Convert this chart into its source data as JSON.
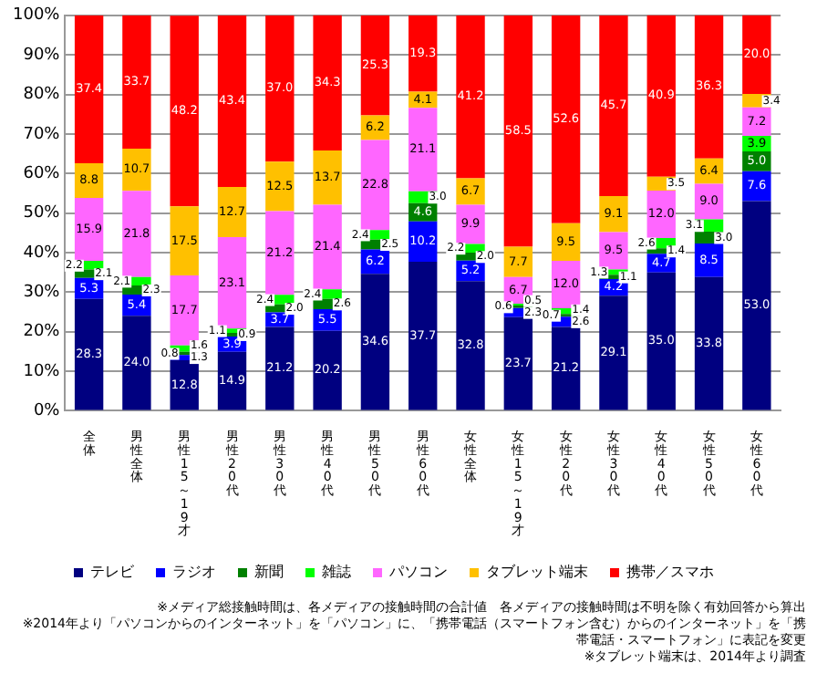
{
  "chart_data": {
    "type": "bar",
    "stacked": true,
    "grid": "y",
    "legend": "bottom",
    "categories": [
      "全体",
      "男性全体",
      "男性15～19才",
      "男性20代",
      "男性30代",
      "男性40代",
      "男性50代",
      "男性60代",
      "女性全体",
      "女性15～19才",
      "女性20代",
      "女性30代",
      "女性40代",
      "女性50代",
      "女性60代"
    ],
    "series": [
      {
        "name": "テレビ",
        "color": "#000080",
        "values": [
          28.3,
          24,
          12.8,
          14.9,
          21.2,
          20.2,
          34.6,
          37.7,
          32.8,
          23.7,
          21.2,
          29.1,
          35,
          33.8,
          53
        ],
        "value_labels": [
          "28.3",
          "24.0",
          "12.8",
          "14.9",
          "21.2",
          "20.2",
          "34.6",
          "37.7",
          "32.8",
          "23.7",
          "21.2",
          "29.1",
          "35.0",
          "33.8",
          "53.0"
        ]
      },
      {
        "name": "ラジオ",
        "color": "#0000ff",
        "values": [
          5.3,
          5.4,
          1.3,
          3.9,
          3.7,
          5.5,
          6.2,
          10.2,
          5.2,
          2.3,
          2.6,
          4.2,
          4.7,
          8.5,
          7.6
        ],
        "value_labels": [
          "5.3",
          "5.4",
          "1.3",
          "3.9",
          "3.7",
          "5.5",
          "6.2",
          "10.2",
          "5.2",
          "2.3",
          "2.6",
          "4.2",
          "4.7",
          "8.5",
          "7.6"
        ]
      },
      {
        "name": "新聞",
        "color": "#008000",
        "values": [
          2.1,
          2.3,
          0.8,
          0.9,
          2,
          2.6,
          2.5,
          4.6,
          2,
          0.6,
          0.7,
          1.1,
          1.4,
          3,
          5
        ],
        "value_labels": [
          "2.1",
          "2.3",
          "0.8",
          "0.9",
          "2.0",
          "2.6",
          "2.5",
          "4.6",
          "2.0",
          "0.6",
          "0.7",
          "1.1",
          "1.4",
          "3.0",
          "5.0"
        ]
      },
      {
        "name": "雑誌",
        "color": "#00ff00",
        "values": [
          2.2,
          2.1,
          1.6,
          1.1,
          2.4,
          2.4,
          2.4,
          3,
          2.2,
          0.5,
          1.4,
          1.3,
          2.6,
          3.1,
          3.9
        ],
        "value_labels": [
          "2.2",
          "2.1",
          "1.6",
          "1.1",
          "2.4",
          "2.4",
          "2.4",
          "3.0",
          "2.2",
          "0.5",
          "1.4",
          "1.3",
          "2.6",
          "3.1",
          "3.9"
        ]
      },
      {
        "name": "パソコン",
        "color": "#ff66ff",
        "values": [
          15.9,
          21.8,
          17.7,
          23.1,
          21.2,
          21.4,
          22.8,
          21.1,
          9.9,
          6.7,
          12,
          9.5,
          12,
          9,
          7.2
        ],
        "value_labels": [
          "15.9",
          "21.8",
          "17.7",
          "23.1",
          "21.2",
          "21.4",
          "22.8",
          "21.1",
          "9.9",
          "6.7",
          "12.0",
          "9.5",
          "12.0",
          "9.0",
          "7.2"
        ]
      },
      {
        "name": "タブレット端末",
        "color": "#ffc000",
        "values": [
          8.8,
          10.7,
          17.5,
          12.7,
          12.5,
          13.7,
          6.2,
          4.1,
          6.7,
          7.7,
          9.5,
          9.1,
          3.5,
          6.4,
          3.4
        ],
        "value_labels": [
          "8.8",
          "10.7",
          "17.5",
          "12.7",
          "12.5",
          "13.7",
          "6.2",
          "4.1",
          "6.7",
          "7.7",
          "9.5",
          "9.1",
          "3.5",
          "6.4",
          "3.4"
        ]
      },
      {
        "name": "携帯／スマホ",
        "color": "#ff0000",
        "values": [
          37.4,
          33.7,
          48.2,
          43.4,
          37,
          34.3,
          25.3,
          19.3,
          41.2,
          58.5,
          52.6,
          45.7,
          40.9,
          36.3,
          20
        ],
        "value_labels": [
          "37.4",
          "33.7",
          "48.2",
          "43.4",
          "37.0",
          "34.3",
          "25.3",
          "19.3",
          "41.2",
          "58.5",
          "52.6",
          "45.7",
          "40.9",
          "36.3",
          "20.0"
        ]
      }
    ],
    "ylim": [
      0,
      100
    ],
    "yticks": [
      {
        "value": 0,
        "label": "0%"
      },
      {
        "value": 10,
        "label": "10%"
      },
      {
        "value": 20,
        "label": "20%"
      },
      {
        "value": 30,
        "label": "30%"
      },
      {
        "value": 40,
        "label": "40%"
      },
      {
        "value": 50,
        "label": "50%"
      },
      {
        "value": 60,
        "label": "60%"
      },
      {
        "value": 70,
        "label": "70%"
      },
      {
        "value": 80,
        "label": "80%"
      },
      {
        "value": 90,
        "label": "90%"
      },
      {
        "value": 100,
        "label": "100%"
      }
    ],
    "annotations": [
      "※メディア総接触時間は、各メディアの接触時間の合計値　各メディアの接触時間は不明を除く有効回答から算出",
      "※2014年より「パソコンからのインターネット」を「パソコン」に、「携帯電話（スマートフォン含む）からのインターネット」を「携帯電話・スマートフォン」に表記を変更",
      "※タブレット端末は、2014年より調査"
    ]
  }
}
